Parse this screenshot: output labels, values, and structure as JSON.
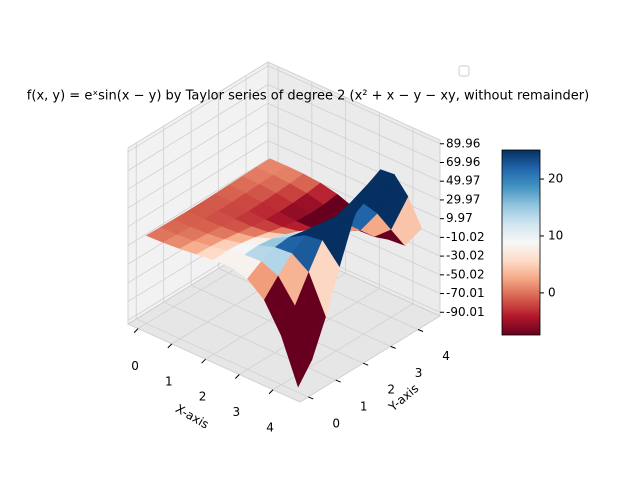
{
  "chart_data": {
    "type": "surface3d",
    "title": "f(x, y) = eˣsin(x − y) by Taylor series of degree 2 (x² + x − y − xy,  without remainder)",
    "xlabel": "X-axis",
    "ylabel": "Y-axis",
    "x": [
      0,
      0.5,
      1,
      1.5,
      2,
      2.5,
      3,
      3.5,
      4,
      4.5
    ],
    "y": [
      0,
      0.5,
      1,
      1.5,
      2,
      2.5,
      3,
      3.5,
      4,
      4.5
    ],
    "z": [
      [
        0,
        -0.48,
        -0.84,
        -1.0,
        -0.91,
        -0.6,
        -0.14,
        0.35,
        0.76,
        0.98
      ],
      [
        0.79,
        0,
        -0.79,
        -1.39,
        -1.64,
        -1.5,
        -0.99,
        -0.23,
        0.58,
        1.25
      ],
      [
        2.29,
        1.3,
        0,
        -1.3,
        -2.29,
        -2.71,
        -2.47,
        -1.63,
        -0.38,
        0.95
      ],
      [
        4.47,
        3.77,
        2.15,
        0,
        -2.15,
        -3.77,
        -4.47,
        -4.08,
        -2.68,
        -0.63
      ],
      [
        6.72,
        7.37,
        6.22,
        3.54,
        0,
        -3.54,
        -6.22,
        -7.37,
        -6.72,
        -4.42
      ],
      [
        7.29,
        11.08,
        12.15,
        10.25,
        5.84,
        0,
        -5.84,
        -10.25,
        -12.15,
        -11.08
      ],
      [
        2.83,
        12.02,
        18.26,
        20.04,
        16.9,
        9.63,
        0,
        -9.63,
        -16.9,
        -20.04
      ],
      [
        -11.62,
        4.67,
        19.82,
        30.11,
        33.03,
        27.87,
        15.88,
        0,
        -15.88,
        -27.87
      ],
      [
        -41.32,
        -19.15,
        7.7,
        32.68,
        49.65,
        54.46,
        45.94,
        26.18,
        0,
        -26.18
      ],
      [
        -87.99,
        -68.13,
        -31.58,
        12.7,
        53.88,
        81.85,
        89.82,
        75.75,
        43.14,
        0
      ]
    ],
    "xlim": [
      -0.3,
      4.8
    ],
    "ylim": [
      -0.3,
      4.8
    ],
    "zlim": [
      -94,
      94
    ],
    "xticks": [
      0,
      1,
      2,
      3,
      4
    ],
    "yticks": [
      0,
      1,
      2,
      3,
      4
    ],
    "zticks": [
      89.96,
      69.96,
      49.97,
      29.97,
      9.97,
      -10.02,
      -30.02,
      -50.02,
      -70.01,
      -90.01
    ],
    "colormap": "RdBu",
    "clim": [
      -7.4,
      25.1
    ],
    "cticks": [
      0,
      10,
      20
    ],
    "grid": true
  }
}
